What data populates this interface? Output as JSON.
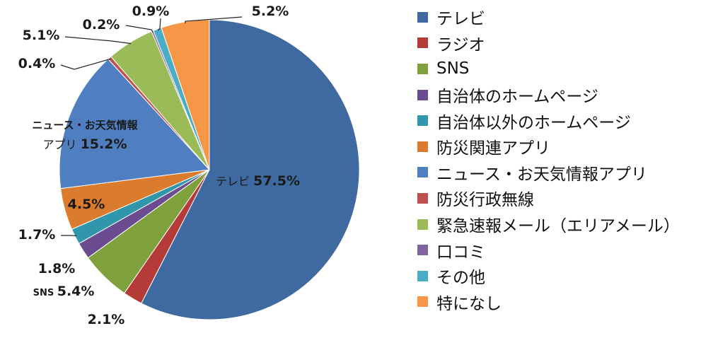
{
  "chart_data": {
    "type": "pie",
    "slices": [
      {
        "name": "テレビ",
        "value": 57.5,
        "color": "#3f6aa1",
        "label_prefix": "テレビ",
        "label": "57.5%"
      },
      {
        "name": "ラジオ",
        "value": 2.1,
        "color": "#b43b38",
        "label_prefix": "",
        "label": "2.1%"
      },
      {
        "name": "SNS",
        "value": 5.4,
        "color": "#7ea03d",
        "label_prefix": "SNS",
        "label": "5.4%"
      },
      {
        "name": "自治体のホームページ",
        "value": 1.8,
        "color": "#6b4c91",
        "label_prefix": "",
        "label": "1.8%"
      },
      {
        "name": "自治体以外のホームページ",
        "value": 1.7,
        "color": "#2f96ab",
        "label_prefix": "",
        "label": "1.7%"
      },
      {
        "name": "防災関連アプリ",
        "value": 4.5,
        "color": "#db7b2e",
        "label_prefix": "",
        "label": "4.5%"
      },
      {
        "name": "ニュース・お天気情報アプリ",
        "value": 15.2,
        "color": "#4f7fc0",
        "label_prefix": "ニュース・お天気情報 アプリ",
        "label_line1": "ニュース・お天気情報",
        "label_line2_prefix": "アプリ",
        "label": "15.2%"
      },
      {
        "name": "防災行政無線",
        "value": 0.4,
        "color": "#c0504d",
        "label_prefix": "",
        "label": "0.4%"
      },
      {
        "name": "緊急速報メール（エリアメール）",
        "value": 5.1,
        "color": "#9bbb59",
        "label_prefix": "",
        "label": "5.1%"
      },
      {
        "name": "口コミ",
        "value": 0.2,
        "color": "#8064a2",
        "label_prefix": "",
        "label": "0.2%"
      },
      {
        "name": "その他",
        "value": 0.9,
        "color": "#4bacc6",
        "label_prefix": "",
        "label": "0.9%"
      },
      {
        "name": "特になし",
        "value": 5.2,
        "color": "#f79646",
        "label_prefix": "",
        "label": "5.2%"
      }
    ],
    "legend": {
      "position": "right",
      "entries": [
        "テレビ",
        "ラジオ",
        "SNS",
        "自治体のホームページ",
        "自治体以外のホームページ",
        "防災関連アプリ",
        "ニュース・お天気情報アプリ",
        "防災行政無線",
        "緊急速報メール（エリアメール）",
        "口コミ",
        "その他",
        "特になし"
      ]
    }
  }
}
